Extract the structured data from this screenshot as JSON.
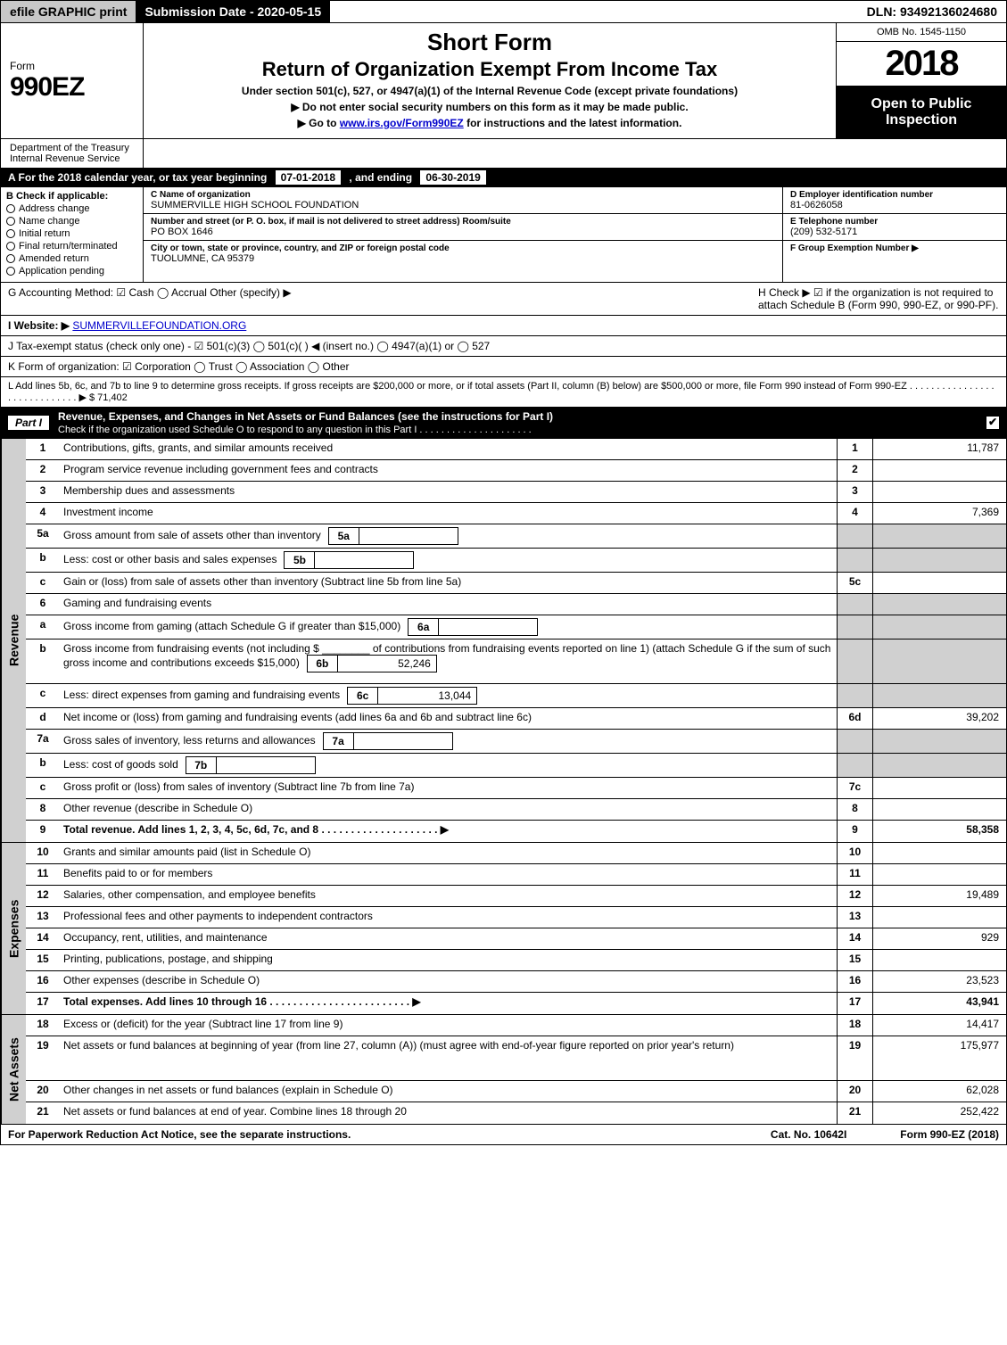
{
  "topbar": {
    "efile": "efile GRAPHIC print",
    "submission": "Submission Date - 2020-05-15",
    "dln": "DLN: 93492136024680"
  },
  "header": {
    "form_label": "Form",
    "form_number": "990EZ",
    "short_form": "Short Form",
    "title": "Return of Organization Exempt From Income Tax",
    "subtitle": "Under section 501(c), 527, or 4947(a)(1) of the Internal Revenue Code (except private foundations)",
    "note1": "▶ Do not enter social security numbers on this form as it may be made public.",
    "note2_prefix": "▶ Go to ",
    "note2_link": "www.irs.gov/Form990EZ",
    "note2_suffix": " for instructions and the latest information.",
    "dept1": "Department of the Treasury",
    "dept2": "Internal Revenue Service",
    "omb": "OMB No. 1545-1150",
    "year": "2018",
    "open": "Open to Public Inspection"
  },
  "row_a": {
    "prefix": "A  For the 2018 calendar year, or tax year beginning ",
    "begin": "07-01-2018",
    "mid": " , and ending ",
    "end": "06-30-2019"
  },
  "col_b": {
    "title": "B  Check if applicable:",
    "items": [
      "Address change",
      "Name change",
      "Initial return",
      "Final return/terminated",
      "Amended return",
      "Application pending"
    ]
  },
  "col_c": {
    "name_label": "C Name of organization",
    "name": "SUMMERVILLE HIGH SCHOOL FOUNDATION",
    "addr_label": "Number and street (or P. O. box, if mail is not delivered to street address)     Room/suite",
    "addr": "PO BOX 1646",
    "city_label": "City or town, state or province, country, and ZIP or foreign postal code",
    "city": "TUOLUMNE, CA  95379"
  },
  "col_d": {
    "ein_label": "D Employer identification number",
    "ein": "81-0626058",
    "phone_label": "E Telephone number",
    "phone": "(209) 532-5171",
    "group_label": "F Group Exemption Number  ▶"
  },
  "lines": {
    "g": "G Accounting Method:   ☑ Cash   ◯ Accrual   Other (specify) ▶ ",
    "h": "H  Check ▶  ☑  if the organization is not required to attach Schedule B (Form 990, 990-EZ, or 990-PF).",
    "i_prefix": "I Website: ▶",
    "i_link": "SUMMERVILLEFOUNDATION.ORG",
    "j": "J Tax-exempt status (check only one) -  ☑ 501(c)(3)  ◯  501(c)(   ) ◀ (insert no.)  ◯  4947(a)(1) or  ◯  527",
    "k": "K Form of organization:   ☑ Corporation   ◯ Trust   ◯ Association   ◯ Other",
    "l": "L Add lines 5b, 6c, and 7b to line 9 to determine gross receipts. If gross receipts are $200,000 or more, or if total assets (Part II, column (B) below) are $500,000 or more, file Form 990 instead of Form 990-EZ  . . . . . . . . . . . . . . . . . . . . . . . . . . . . .  ▶ $ 71,402"
  },
  "part1": {
    "label": "Part I",
    "title": "Revenue, Expenses, and Changes in Net Assets or Fund Balances (see the instructions for Part I)",
    "sub": "Check if the organization used Schedule O to respond to any question in this Part I . . . . . . . . . . . . . . . . . . . . ."
  },
  "sections": [
    {
      "side": "Revenue",
      "rows": [
        {
          "n": "1",
          "desc": "Contributions, gifts, grants, and similar amounts received",
          "rn": "1",
          "amt": "11,787"
        },
        {
          "n": "2",
          "desc": "Program service revenue including government fees and contracts",
          "rn": "2",
          "amt": ""
        },
        {
          "n": "3",
          "desc": "Membership dues and assessments",
          "rn": "3",
          "amt": ""
        },
        {
          "n": "4",
          "desc": "Investment income",
          "rn": "4",
          "amt": "7,369"
        },
        {
          "n": "5a",
          "desc": "Gross amount from sale of assets other than inventory",
          "sub": {
            "sn": "5a",
            "sv": ""
          },
          "grey": true
        },
        {
          "n": "b",
          "desc": "Less: cost or other basis and sales expenses",
          "sub": {
            "sn": "5b",
            "sv": ""
          },
          "grey": true
        },
        {
          "n": "c",
          "desc": "Gain or (loss) from sale of assets other than inventory (Subtract line 5b from line 5a)",
          "rn": "5c",
          "amt": ""
        },
        {
          "n": "6",
          "desc": "Gaming and fundraising events",
          "grey": true,
          "noboxes": true
        },
        {
          "n": "a",
          "desc": "Gross income from gaming (attach Schedule G if greater than $15,000)",
          "sub": {
            "sn": "6a",
            "sv": ""
          },
          "grey": true
        },
        {
          "n": "b",
          "desc": "Gross income from fundraising events (not including $ ________ of contributions from fundraising events reported on line 1) (attach Schedule G if the sum of such gross income and contributions exceeds $15,000)",
          "sub": {
            "sn": "6b",
            "sv": "52,246"
          },
          "grey": true,
          "tall": true
        },
        {
          "n": "c",
          "desc": "Less: direct expenses from gaming and fundraising events",
          "sub": {
            "sn": "6c",
            "sv": "13,044"
          },
          "grey": true
        },
        {
          "n": "d",
          "desc": "Net income or (loss) from gaming and fundraising events (add lines 6a and 6b and subtract line 6c)",
          "rn": "6d",
          "amt": "39,202"
        },
        {
          "n": "7a",
          "desc": "Gross sales of inventory, less returns and allowances",
          "sub": {
            "sn": "7a",
            "sv": ""
          },
          "grey": true
        },
        {
          "n": "b",
          "desc": "Less: cost of goods sold",
          "sub": {
            "sn": "7b",
            "sv": ""
          },
          "grey": true
        },
        {
          "n": "c",
          "desc": "Gross profit or (loss) from sales of inventory (Subtract line 7b from line 7a)",
          "rn": "7c",
          "amt": ""
        },
        {
          "n": "8",
          "desc": "Other revenue (describe in Schedule O)",
          "rn": "8",
          "amt": ""
        },
        {
          "n": "9",
          "desc": "Total revenue. Add lines 1, 2, 3, 4, 5c, 6d, 7c, and 8   . . . . . . . . . . . . . . . . . . . . ▶",
          "rn": "9",
          "amt": "58,358",
          "bold": true
        }
      ]
    },
    {
      "side": "Expenses",
      "rows": [
        {
          "n": "10",
          "desc": "Grants and similar amounts paid (list in Schedule O)",
          "rn": "10",
          "amt": ""
        },
        {
          "n": "11",
          "desc": "Benefits paid to or for members",
          "rn": "11",
          "amt": ""
        },
        {
          "n": "12",
          "desc": "Salaries, other compensation, and employee benefits",
          "rn": "12",
          "amt": "19,489"
        },
        {
          "n": "13",
          "desc": "Professional fees and other payments to independent contractors",
          "rn": "13",
          "amt": ""
        },
        {
          "n": "14",
          "desc": "Occupancy, rent, utilities, and maintenance",
          "rn": "14",
          "amt": "929"
        },
        {
          "n": "15",
          "desc": "Printing, publications, postage, and shipping",
          "rn": "15",
          "amt": ""
        },
        {
          "n": "16",
          "desc": "Other expenses (describe in Schedule O)",
          "rn": "16",
          "amt": "23,523"
        },
        {
          "n": "17",
          "desc": "Total expenses. Add lines 10 through 16   . . . . . . . . . . . . . . . . . . . . . . . . ▶",
          "rn": "17",
          "amt": "43,941",
          "bold": true
        }
      ]
    },
    {
      "side": "Net Assets",
      "rows": [
        {
          "n": "18",
          "desc": "Excess or (deficit) for the year (Subtract line 17 from line 9)",
          "rn": "18",
          "amt": "14,417"
        },
        {
          "n": "19",
          "desc": "Net assets or fund balances at beginning of year (from line 27, column (A)) (must agree with end-of-year figure reported on prior year's return)",
          "rn": "19",
          "amt": "175,977",
          "tall": true
        },
        {
          "n": "20",
          "desc": "Other changes in net assets or fund balances (explain in Schedule O)",
          "rn": "20",
          "amt": "62,028"
        },
        {
          "n": "21",
          "desc": "Net assets or fund balances at end of year. Combine lines 18 through 20",
          "rn": "21",
          "amt": "252,422"
        }
      ]
    }
  ],
  "footer": {
    "left": "For Paperwork Reduction Act Notice, see the separate instructions.",
    "mid": "Cat. No. 10642I",
    "right": "Form 990-EZ (2018)"
  },
  "colors": {
    "black": "#000000",
    "grey": "#d0d0d0",
    "link": "#0000cc"
  }
}
